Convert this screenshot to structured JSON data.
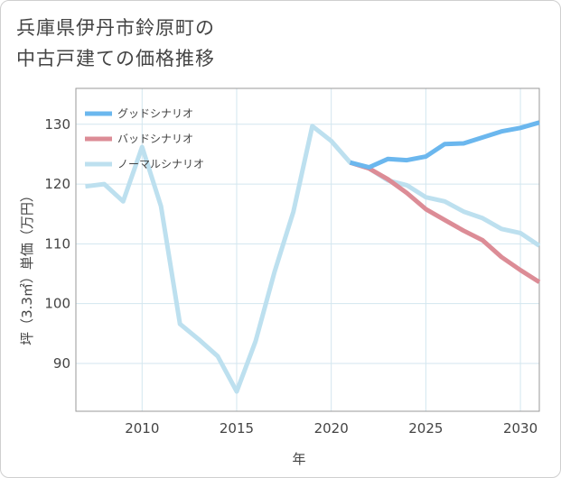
{
  "title": {
    "line1": "兵庫県伊丹市鈴原町の",
    "line2": "中古戸建ての価格推移"
  },
  "chart_data": {
    "type": "line",
    "xlabel": "年",
    "ylabel": "坪（3.3㎡）単価（万円）",
    "xlim": [
      2006.5,
      2031
    ],
    "ylim": [
      82,
      136
    ],
    "x_ticks": [
      2010,
      2015,
      2020,
      2025,
      2030
    ],
    "y_ticks": [
      90,
      100,
      110,
      120,
      130
    ],
    "grid": true,
    "legend_position": "top-left",
    "series": [
      {
        "name": "グッドシナリオ",
        "color": "#6bb7ee",
        "x": [
          2021,
          2022,
          2023,
          2024,
          2025,
          2026,
          2027,
          2028,
          2029,
          2030,
          2031
        ],
        "y": [
          123.6,
          122.8,
          124.2,
          124.0,
          124.6,
          126.7,
          126.8,
          127.8,
          128.8,
          129.4,
          130.3
        ]
      },
      {
        "name": "バッドシナリオ",
        "color": "#dc8c96",
        "x": [
          2021,
          2022,
          2023,
          2024,
          2025,
          2026,
          2027,
          2028,
          2029,
          2030,
          2031
        ],
        "y": [
          123.6,
          122.6,
          120.8,
          118.5,
          115.8,
          114.0,
          112.2,
          110.6,
          107.8,
          105.6,
          103.6
        ]
      },
      {
        "name": "ノーマルシナリオ",
        "color": "#bde0ef",
        "x": [
          2007,
          2008,
          2009,
          2010,
          2011,
          2012,
          2013,
          2014,
          2015,
          2016,
          2017,
          2018,
          2019,
          2020,
          2021,
          2022,
          2023,
          2024,
          2025,
          2026,
          2027,
          2028,
          2029,
          2030,
          2031
        ],
        "y": [
          119.6,
          120.0,
          117.1,
          126.2,
          116.3,
          96.6,
          94.0,
          91.2,
          85.3,
          93.7,
          105.3,
          115.4,
          129.7,
          127.2,
          123.6,
          122.6,
          120.6,
          119.8,
          117.8,
          117.1,
          115.4,
          114.3,
          112.5,
          111.8,
          109.7
        ]
      }
    ]
  }
}
